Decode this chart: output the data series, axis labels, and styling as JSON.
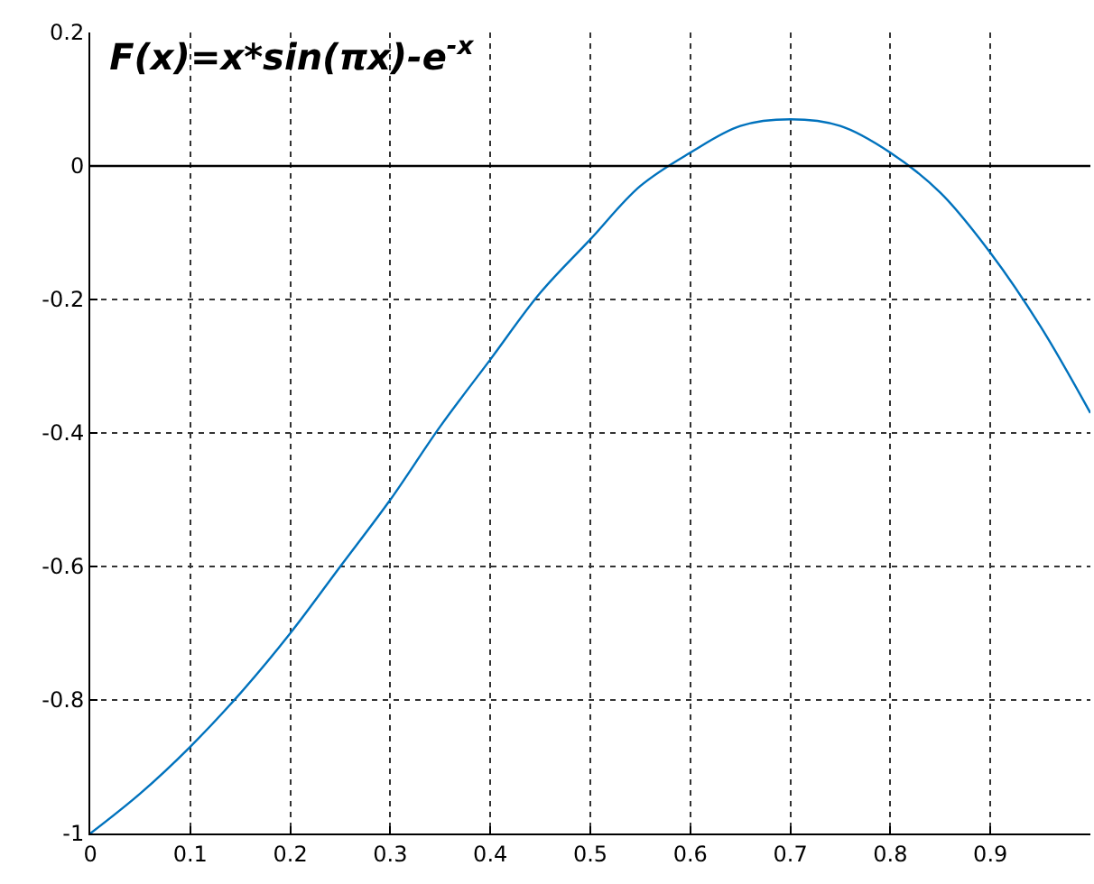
{
  "chart_data": {
    "type": "line",
    "title": "F(x)=x*sin(πx)-e$^{-x}$",
    "x": [
      0,
      0.05,
      0.1,
      0.15,
      0.2,
      0.25,
      0.3,
      0.35,
      0.4,
      0.45,
      0.5,
      0.55,
      0.6,
      0.65,
      0.7,
      0.75,
      0.8,
      0.85,
      0.9,
      0.95,
      1.0
    ],
    "series": [
      {
        "color": "#0072bd",
        "values": [
          -1,
          -0.94,
          -0.87,
          -0.79,
          -0.7,
          -0.6,
          -0.5,
          -0.39,
          -0.29,
          -0.19,
          -0.11,
          -0.03,
          0.02,
          0.06,
          0.07,
          0.06,
          0.02,
          -0.04,
          -0.13,
          -0.24,
          -0.37
        ]
      }
    ],
    "xlim": [
      0,
      1
    ],
    "xticks": [
      0,
      0.1,
      0.2,
      0.3,
      0.4,
      0.5,
      0.6,
      0.7,
      0.8,
      0.9
    ],
    "ylim": [
      -1,
      0.2
    ],
    "yticks": [
      -1,
      -0.8,
      -0.6,
      -0.4,
      -0.2,
      0,
      0.2
    ],
    "grid": true,
    "line_style": "solid",
    "marker": "none",
    "ref_lines": [
      {
        "axis": "y",
        "value": 0,
        "color": "#000000",
        "line_style": "solid"
      }
    ]
  }
}
